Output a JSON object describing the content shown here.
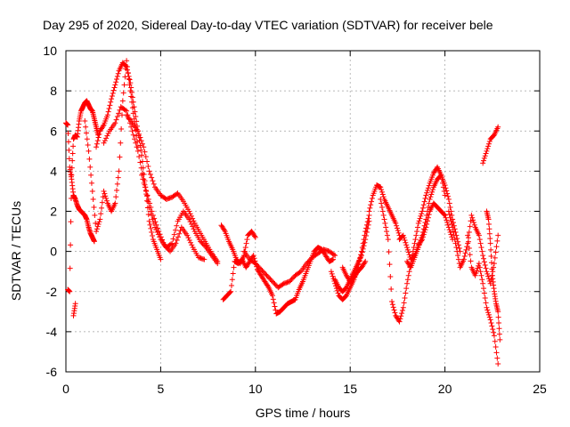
{
  "chart_data": {
    "type": "scatter",
    "title": "Day 295 of 2020, Sidereal Day-to-day VTEC variation (SDTVAR) for receiver bele",
    "xlabel": "GPS time / hours",
    "ylabel": "SDTVAR / TECUs",
    "xlim": [
      0,
      25
    ],
    "ylim": [
      -6,
      10
    ],
    "xticks": [
      0,
      5,
      10,
      15,
      20,
      25
    ],
    "yticks": [
      -6,
      -4,
      -2,
      0,
      2,
      4,
      6,
      8,
      10
    ],
    "grid": true,
    "marker": "+",
    "color": "#ff0000",
    "series": [
      {
        "name": "s1",
        "x": [
          0.0,
          0.1,
          0.2,
          0.3,
          0.4,
          0.5,
          0.6,
          0.7,
          0.8,
          0.9,
          1.0,
          1.1,
          1.2,
          1.3,
          1.4,
          1.5
        ],
        "y": [
          6.4,
          6.3,
          4.2,
          3.6,
          2.8,
          2.6,
          2.3,
          2.1,
          2.0,
          1.9,
          1.8,
          1.6,
          1.2,
          0.9,
          0.7,
          0.5
        ]
      },
      {
        "name": "s2",
        "x": [
          0.1,
          0.2,
          0.3,
          0.4,
          0.5,
          0.6,
          0.7,
          0.8,
          0.9,
          1.0,
          1.1,
          1.2,
          1.3,
          1.4,
          1.5,
          1.6,
          1.7
        ],
        "y": [
          -1.9,
          -2.0,
          3.8,
          5.6,
          5.8,
          5.7,
          6.5,
          7.0,
          7.2,
          7.4,
          7.5,
          7.3,
          7.1,
          7.0,
          6.6,
          6.2,
          5.8
        ]
      },
      {
        "name": "s3",
        "x": [
          0.4,
          0.5
        ],
        "y": [
          -3.2,
          -2.6
        ]
      },
      {
        "name": "s4",
        "x": [
          1.0,
          1.2,
          1.4,
          1.6,
          1.8,
          2.0,
          2.2,
          2.4,
          2.6,
          2.8,
          3.0,
          3.2,
          3.4,
          3.6,
          3.8
        ],
        "y": [
          6.5,
          5.0,
          3.0,
          1.0,
          1.6,
          3.0,
          2.4,
          2.0,
          2.4,
          4.0,
          7.5,
          9.5,
          8.0,
          6.6,
          5.2
        ]
      },
      {
        "name": "s5",
        "x": [
          1.6,
          1.8,
          2.0,
          2.2,
          2.4,
          2.6,
          2.8,
          3.0,
          3.2,
          3.4,
          3.6,
          3.8,
          4.0,
          4.2,
          4.4,
          4.6,
          4.8,
          5.0
        ],
        "y": [
          5.2,
          6.0,
          6.3,
          6.8,
          7.6,
          8.3,
          9.0,
          9.4,
          9.2,
          8.4,
          7.2,
          6.0,
          4.8,
          3.2,
          1.5,
          0.6,
          0.1,
          -0.4
        ]
      },
      {
        "name": "s6",
        "x": [
          2.0,
          2.3,
          2.6,
          2.9,
          3.2,
          3.5,
          3.8,
          4.1,
          4.4,
          4.7,
          5.0,
          5.3,
          5.6,
          5.9,
          6.2,
          6.5,
          6.8,
          7.1,
          7.4,
          7.7,
          8.0
        ],
        "y": [
          5.4,
          6.0,
          6.4,
          7.2,
          7.0,
          6.0,
          5.0,
          3.6,
          2.2,
          1.2,
          0.6,
          0.2,
          0.4,
          1.5,
          2.0,
          1.6,
          1.0,
          0.5,
          0.2,
          -0.2,
          -0.6
        ]
      },
      {
        "name": "s7",
        "x": [
          3.2,
          3.5,
          3.8,
          4.1,
          4.4,
          4.7,
          5.0,
          5.3,
          5.6,
          5.9,
          6.2,
          6.5,
          6.8,
          7.1,
          7.4,
          7.7,
          8.0
        ],
        "y": [
          6.8,
          6.4,
          6.0,
          5.2,
          4.0,
          3.2,
          2.8,
          2.6,
          2.7,
          2.9,
          2.5,
          2.0,
          1.4,
          0.9,
          0.4,
          -0.1,
          -0.5
        ]
      },
      {
        "name": "s8",
        "x": [
          4.0,
          4.3,
          4.6,
          4.9,
          5.2,
          5.5,
          5.8,
          6.1,
          6.4,
          6.7,
          7.0,
          7.3
        ],
        "y": [
          3.8,
          2.8,
          1.8,
          1.0,
          0.3,
          0.0,
          0.4,
          1.2,
          0.8,
          0.2,
          -0.3,
          -0.4
        ]
      },
      {
        "name": "s9",
        "x": [
          8.2,
          8.4,
          8.6,
          8.8,
          9.0,
          9.2,
          9.4,
          9.6,
          9.8,
          10.0
        ],
        "y": [
          1.3,
          1.0,
          0.5,
          0.1,
          -0.4,
          -0.6,
          -0.2,
          0.8,
          1.0,
          0.7
        ]
      },
      {
        "name": "s10",
        "x": [
          8.3,
          8.5,
          8.7,
          8.9,
          9.1,
          9.3,
          9.5,
          9.7,
          9.9,
          10.1,
          10.3,
          10.5,
          10.7,
          10.9,
          11.1,
          11.3,
          11.5,
          11.7,
          11.9,
          12.1,
          12.3,
          12.5,
          12.7,
          12.9,
          13.1,
          13.3,
          13.5,
          13.7,
          13.9,
          14.1
        ],
        "y": [
          -2.4,
          -2.2,
          -2.0,
          -0.5,
          -0.6,
          -0.4,
          -0.8,
          -0.5,
          -0.2,
          -0.9,
          -1.2,
          -1.5,
          -1.8,
          -2.2,
          -3.1,
          -3.0,
          -2.8,
          -2.6,
          -2.5,
          -2.4,
          -1.9,
          -1.5,
          -1.0,
          -0.5,
          0.0,
          0.2,
          0.1,
          -0.2,
          -0.5,
          -0.4
        ]
      },
      {
        "name": "s11",
        "x": [
          9.4,
          9.7,
          10.0,
          10.3,
          10.6,
          10.9,
          11.2,
          11.5,
          11.8,
          12.1,
          12.4,
          12.7,
          13.0,
          13.3,
          13.6,
          13.9,
          14.2
        ],
        "y": [
          0.0,
          -0.4,
          -0.6,
          -0.9,
          -1.2,
          -1.5,
          -1.8,
          -1.6,
          -1.5,
          -1.2,
          -1.0,
          -0.6,
          -0.3,
          -0.1,
          0.1,
          0.0,
          -0.2
        ]
      },
      {
        "name": "s12",
        "x": [
          14.0,
          14.2,
          14.4,
          14.6,
          14.8,
          15.0,
          15.2,
          15.4,
          15.6,
          15.8,
          16.0
        ],
        "y": [
          -1.0,
          -1.6,
          -2.2,
          -2.4,
          -2.2,
          -1.8,
          -1.4,
          -0.8,
          0.0,
          1.0,
          1.8
        ]
      },
      {
        "name": "s13",
        "x": [
          14.2,
          14.4,
          14.6,
          14.8,
          15.0,
          15.2,
          15.4,
          15.6,
          15.8,
          16.0
        ],
        "y": [
          -1.4,
          -1.8,
          -2.0,
          -1.8,
          -1.4,
          -1.0,
          -0.6,
          -0.2,
          0.6,
          1.5
        ]
      },
      {
        "name": "s14",
        "x": [
          14.6,
          14.8,
          15.0,
          15.2,
          15.4,
          15.6,
          15.8
        ],
        "y": [
          -0.8,
          -1.2,
          -1.5,
          -1.3,
          -1.0,
          -0.8,
          -0.5
        ]
      },
      {
        "name": "s15",
        "x": [
          16.0,
          16.2,
          16.4,
          16.6,
          16.8,
          17.0,
          17.2,
          17.4,
          17.6
        ],
        "y": [
          2.0,
          2.8,
          3.3,
          3.2,
          2.6,
          2.2,
          1.8,
          1.4,
          0.8
        ]
      },
      {
        "name": "s16",
        "x": [
          16.6,
          16.8,
          17.0,
          17.2,
          17.4,
          17.6,
          17.8,
          18.0,
          18.2,
          18.4,
          18.6,
          18.8,
          19.0,
          19.2,
          19.4,
          19.6,
          19.8,
          20.0
        ],
        "y": [
          2.6,
          1.6,
          0.6,
          -2.5,
          -3.2,
          -3.5,
          -2.8,
          -1.6,
          -0.6,
          0.4,
          1.4,
          2.0,
          2.8,
          3.4,
          3.9,
          4.2,
          3.8,
          2.8
        ]
      },
      {
        "name": "s17",
        "x": [
          17.6,
          17.8,
          18.0,
          18.2,
          18.4,
          18.6,
          18.8,
          19.0,
          19.2,
          19.4,
          19.6,
          19.8,
          20.0,
          20.2,
          20.4
        ],
        "y": [
          0.6,
          0.8,
          0.2,
          -0.4,
          -0.2,
          0.3,
          0.6,
          1.2,
          2.0,
          2.4,
          2.2,
          2.0,
          1.8,
          1.2,
          0.6
        ]
      },
      {
        "name": "s18",
        "x": [
          18.0,
          18.2,
          18.4,
          18.6,
          18.8,
          19.0,
          19.2,
          19.4,
          19.6,
          19.8,
          20.0,
          20.2,
          20.4,
          20.6,
          20.8
        ],
        "y": [
          -0.5,
          -0.8,
          -0.3,
          0.2,
          0.8,
          1.6,
          2.6,
          3.2,
          3.6,
          3.8,
          3.3,
          2.6,
          1.6,
          0.8,
          0.0
        ]
      },
      {
        "name": "s19",
        "x": [
          20.2,
          20.4,
          20.6,
          20.8,
          21.0,
          21.2,
          21.4,
          21.6,
          21.8,
          22.0,
          22.2,
          22.4,
          22.6,
          22.8
        ],
        "y": [
          2.0,
          1.2,
          0.2,
          -0.8,
          -0.4,
          0.4,
          1.8,
          1.2,
          0.8,
          -0.2,
          -1.0,
          -1.6,
          -0.6,
          0.8
        ]
      },
      {
        "name": "s20",
        "x": [
          21.2,
          21.4,
          21.6,
          21.8,
          22.0,
          22.2,
          22.4,
          22.6,
          22.8
        ],
        "y": [
          0.8,
          -0.8,
          -1.2,
          -0.6,
          -1.6,
          -2.8,
          -3.4,
          -4.2,
          -5.6
        ]
      },
      {
        "name": "s21",
        "x": [
          22.0,
          22.2,
          22.4,
          22.6,
          22.8
        ],
        "y": [
          4.4,
          5.0,
          5.6,
          5.8,
          6.2
        ]
      },
      {
        "name": "s22",
        "x": [
          22.2,
          22.3,
          22.4,
          22.5,
          22.6,
          22.7,
          22.8,
          22.9
        ],
        "y": [
          2.0,
          1.6,
          0.4,
          -1.2,
          -2.0,
          -2.6,
          -3.0,
          -4.4
        ]
      }
    ]
  }
}
